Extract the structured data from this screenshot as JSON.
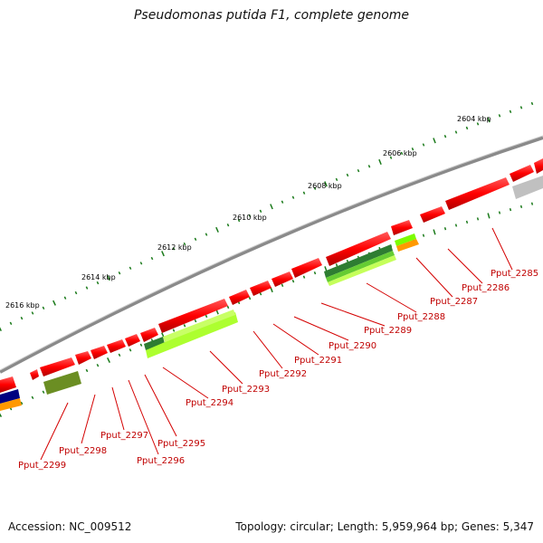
{
  "title": "Pseudomonas putida F1, complete genome",
  "accession": "Accession: NC_009512",
  "summary": "Topology: circular; Length: 5,959,964 bp; Genes: 5,347",
  "colors": {
    "cds": "#ff0000",
    "backbone": "#8a8a8a",
    "tick": "#1a7a1a",
    "label": "#c00000",
    "dark_green": "#2e7d32",
    "olive": "#6b8e23",
    "lime": "#adff2f",
    "gray_feature": "#c0c0c0",
    "orange": "#ff9900",
    "navy": "#000080"
  },
  "kbp_labels": [
    "2604 kbp",
    "2606 kbp",
    "2608 kbp",
    "2610 kbp",
    "2612 kbp",
    "2614 kbp",
    "2616 kbp"
  ],
  "gene_labels": [
    "Pput_2285",
    "Pput_2286",
    "Pput_2287",
    "Pput_2288",
    "Pput_2289",
    "Pput_2290",
    "Pput_2291",
    "Pput_2292",
    "Pput_2293",
    "Pput_2294",
    "Pput_2295",
    "Pput_2296",
    "Pput_2297",
    "Pput_2298",
    "Pput_2299"
  ]
}
